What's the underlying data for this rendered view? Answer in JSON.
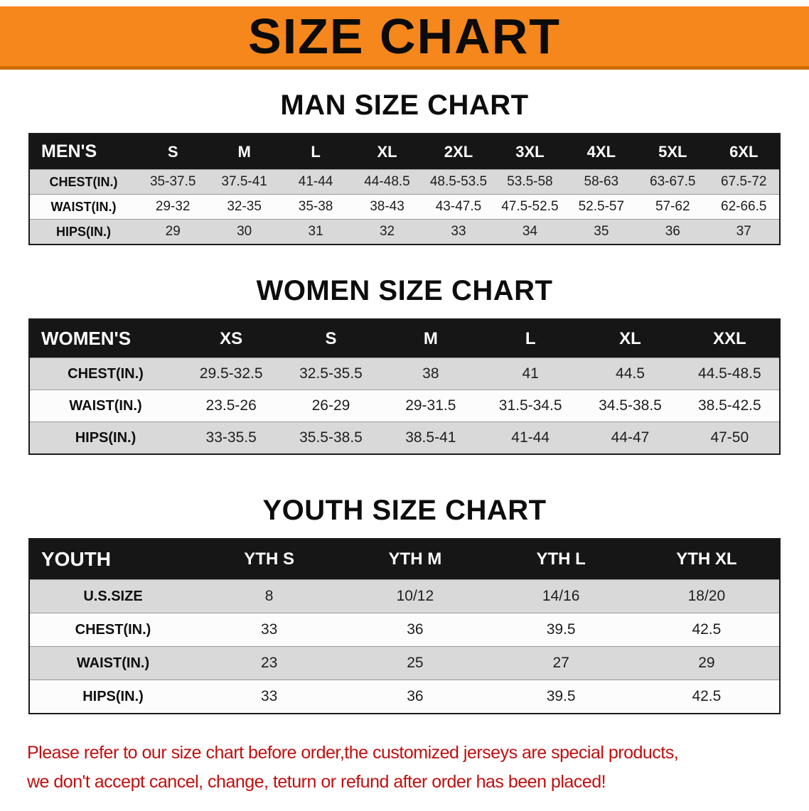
{
  "banner": {
    "title": "SIZE CHART",
    "bg_color": "#F6871D"
  },
  "chart_data": [
    {
      "type": "table",
      "title": "MAN SIZE CHART",
      "corner_label": "MEN'S",
      "columns": [
        "S",
        "M",
        "L",
        "XL",
        "2XL",
        "3XL",
        "4XL",
        "5XL",
        "6XL"
      ],
      "rows": [
        {
          "label": "CHEST(IN.)",
          "values": [
            "35-37.5",
            "37.5-41",
            "41-44",
            "44-48.5",
            "48.5-53.5",
            "53.5-58",
            "58-63",
            "63-67.5",
            "67.5-72"
          ]
        },
        {
          "label": "WAIST(IN.)",
          "values": [
            "29-32",
            "32-35",
            "35-38",
            "38-43",
            "43-47.5",
            "47.5-52.5",
            "52.5-57",
            "57-62",
            "62-66.5"
          ]
        },
        {
          "label": "HIPS(IN.)",
          "values": [
            "29",
            "30",
            "31",
            "32",
            "33",
            "34",
            "35",
            "36",
            "37"
          ]
        }
      ]
    },
    {
      "type": "table",
      "title": "WOMEN SIZE CHART",
      "corner_label": "WOMEN'S",
      "columns": [
        "XS",
        "S",
        "M",
        "L",
        "XL",
        "XXL"
      ],
      "rows": [
        {
          "label": "CHEST(IN.)",
          "values": [
            "29.5-32.5",
            "32.5-35.5",
            "38",
            "41",
            "44.5",
            "44.5-48.5"
          ]
        },
        {
          "label": "WAIST(IN.)",
          "values": [
            "23.5-26",
            "26-29",
            "29-31.5",
            "31.5-34.5",
            "34.5-38.5",
            "38.5-42.5"
          ]
        },
        {
          "label": "HIPS(IN.)",
          "values": [
            "33-35.5",
            "35.5-38.5",
            "38.5-41",
            "41-44",
            "44-47",
            "47-50"
          ]
        }
      ]
    },
    {
      "type": "table",
      "title": "YOUTH SIZE CHART",
      "corner_label": "YOUTH",
      "columns": [
        "YTH S",
        "YTH M",
        "YTH L",
        "YTH XL"
      ],
      "rows": [
        {
          "label": "U.S.SIZE",
          "values": [
            "8",
            "10/12",
            "14/16",
            "18/20"
          ]
        },
        {
          "label": "CHEST(IN.)",
          "values": [
            "33",
            "36",
            "39.5",
            "42.5"
          ]
        },
        {
          "label": "WAIST(IN.)",
          "values": [
            "23",
            "25",
            "27",
            "29"
          ]
        },
        {
          "label": "HIPS(IN.)",
          "values": [
            "33",
            "36",
            "39.5",
            "42.5"
          ]
        }
      ]
    }
  ],
  "footer_note": {
    "lines": [
      "Please refer to our size chart before order,the customized jerseys are special products,",
      "we don't accept cancel, change, teturn or refund after order has been placed!"
    ],
    "color": "#C00F0F"
  }
}
